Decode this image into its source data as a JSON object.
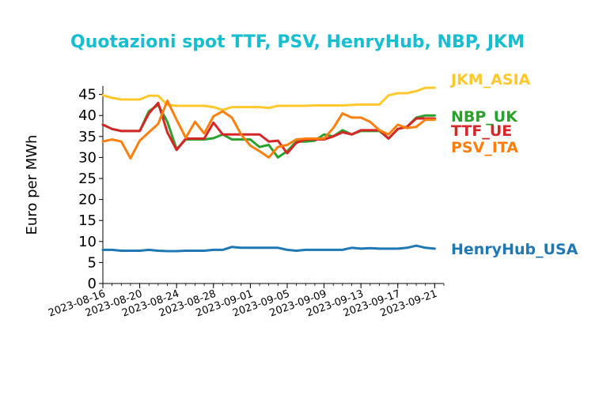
{
  "chart_data": {
    "type": "line",
    "title": "Quotazioni spot TTF, PSV, HenryHub, NBP, JKM",
    "ylabel": "Euro per MWh",
    "xlabel": "",
    "ylim": [
      0,
      47
    ],
    "yticks": [
      0,
      5,
      10,
      15,
      20,
      25,
      30,
      35,
      40,
      45
    ],
    "xlim": [
      "2023-08-16",
      "2023-09-22"
    ],
    "xticks": [
      "2023-08-16",
      "2023-08-20",
      "2023-08-24",
      "2023-08-28",
      "2023-09-01",
      "2023-09-05",
      "2023-09-09",
      "2023-09-13",
      "2023-09-17",
      "2023-09-21"
    ],
    "grid": false,
    "legend": "labels at right end of lines",
    "colors": {
      "title": "#17becf",
      "JKM_ASIA": "#ffc82d",
      "NBP_UK": "#2ca02c",
      "TTF_UE": "#d62728",
      "PSV_ITA": "#ff7f0e",
      "HenryHub_USA": "#1f77b4"
    },
    "x": [
      "2023-08-16",
      "2023-08-17",
      "2023-08-18",
      "2023-08-19",
      "2023-08-20",
      "2023-08-21",
      "2023-08-22",
      "2023-08-23",
      "2023-08-24",
      "2023-08-25",
      "2023-08-26",
      "2023-08-27",
      "2023-08-28",
      "2023-08-29",
      "2023-08-30",
      "2023-08-31",
      "2023-09-01",
      "2023-09-02",
      "2023-09-03",
      "2023-09-04",
      "2023-09-05",
      "2023-09-06",
      "2023-09-07",
      "2023-09-08",
      "2023-09-09",
      "2023-09-10",
      "2023-09-11",
      "2023-09-12",
      "2023-09-13",
      "2023-09-14",
      "2023-09-15",
      "2023-09-16",
      "2023-09-17",
      "2023-09-18",
      "2023-09-19",
      "2023-09-20",
      "2023-09-21"
    ],
    "series": [
      {
        "name": "JKM_ASIA",
        "values": [
          44.8,
          44.2,
          43.8,
          43.8,
          43.8,
          44.7,
          44.7,
          42.5,
          42.3,
          42.3,
          42.3,
          42.3,
          42.0,
          41.3,
          42.0,
          42.0,
          42.0,
          42.0,
          41.8,
          42.3,
          42.3,
          42.3,
          42.3,
          42.4,
          42.4,
          42.4,
          42.4,
          42.5,
          42.6,
          42.6,
          42.6,
          44.8,
          45.3,
          45.3,
          45.8,
          46.6,
          46.6
        ]
      },
      {
        "name": "NBP_UK",
        "values": [
          37.8,
          36.8,
          36.3,
          36.3,
          36.3,
          41.0,
          42.5,
          38.5,
          32.0,
          34.3,
          34.3,
          34.3,
          34.6,
          35.5,
          34.3,
          34.3,
          34.3,
          32.5,
          33.0,
          30.0,
          31.5,
          33.8,
          33.8,
          34.0,
          35.5,
          35.0,
          36.5,
          35.5,
          36.3,
          36.3,
          36.3,
          34.5,
          36.8,
          37.3,
          39.5,
          40.0,
          40.0
        ]
      },
      {
        "name": "TTF_UE",
        "values": [
          37.8,
          36.8,
          36.3,
          36.3,
          36.3,
          40.5,
          43.0,
          36.0,
          31.8,
          34.5,
          34.5,
          34.5,
          38.3,
          35.5,
          35.5,
          35.5,
          35.5,
          35.5,
          33.8,
          34.0,
          31.0,
          33.5,
          34.3,
          34.3,
          34.3,
          35.0,
          36.0,
          35.5,
          36.5,
          36.5,
          36.5,
          34.5,
          36.8,
          37.3,
          39.3,
          39.3,
          39.3
        ]
      },
      {
        "name": "PSV_ITA",
        "values": [
          33.8,
          34.3,
          33.8,
          29.8,
          34.0,
          36.0,
          38.0,
          43.5,
          39.0,
          34.7,
          38.5,
          35.7,
          39.8,
          41.0,
          39.5,
          35.5,
          32.8,
          31.5,
          30.0,
          32.5,
          33.0,
          34.3,
          34.5,
          34.5,
          34.5,
          37.0,
          40.5,
          39.5,
          39.5,
          38.5,
          36.5,
          35.5,
          37.8,
          37.0,
          37.3,
          39.0,
          39.0
        ]
      },
      {
        "name": "HenryHub_USA",
        "values": [
          8.0,
          8.0,
          7.8,
          7.8,
          7.8,
          8.0,
          7.8,
          7.7,
          7.7,
          7.8,
          7.8,
          7.8,
          8.0,
          8.0,
          8.7,
          8.5,
          8.5,
          8.5,
          8.5,
          8.5,
          8.0,
          7.8,
          8.0,
          8.0,
          8.0,
          8.0,
          8.0,
          8.5,
          8.3,
          8.4,
          8.3,
          8.3,
          8.3,
          8.5,
          9.0,
          8.5,
          8.3
        ]
      }
    ]
  }
}
